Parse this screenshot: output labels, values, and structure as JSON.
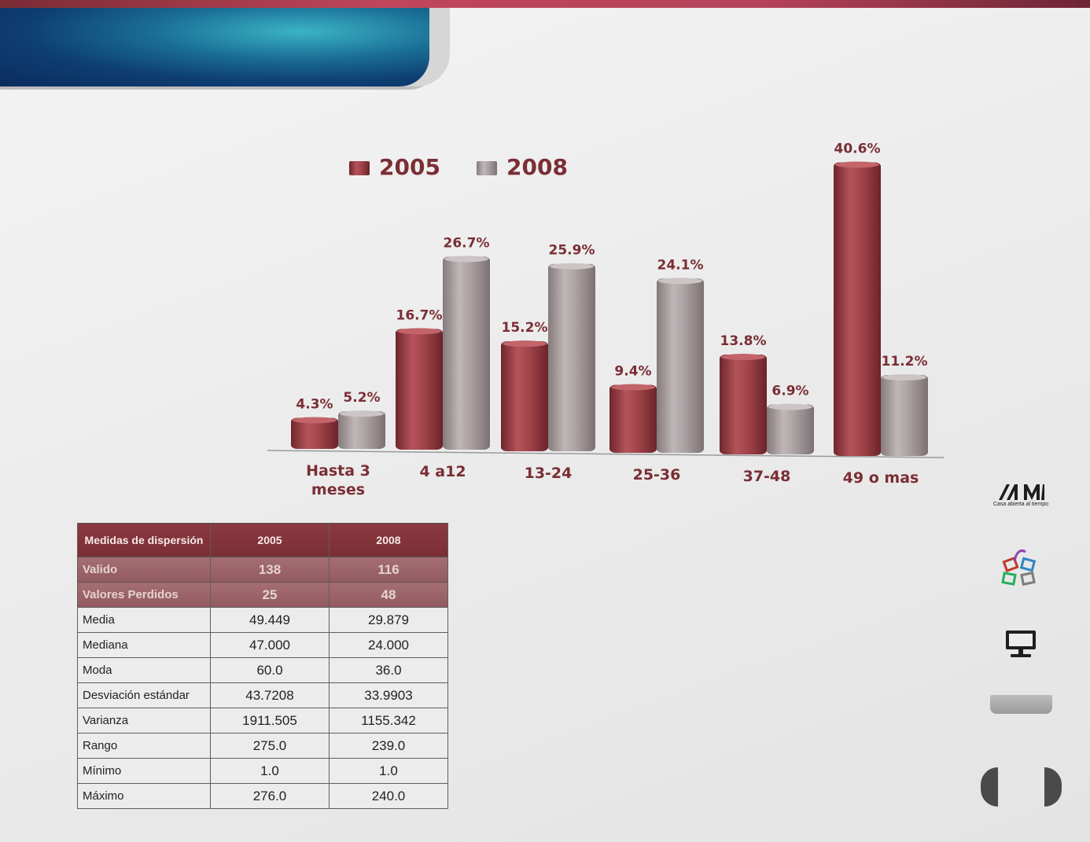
{
  "chart_data": {
    "type": "bar",
    "categories": [
      "Hasta 3 meses",
      "4 a12",
      "13-24",
      "25-36",
      "37-48",
      "49 o mas"
    ],
    "series": [
      {
        "name": "2005",
        "values": [
          4.3,
          16.7,
          15.2,
          9.4,
          13.8,
          40.6
        ],
        "labels": [
          "4.3%",
          "16.7%",
          "15.2%",
          "9.4%",
          "13.8%",
          "40.6%"
        ]
      },
      {
        "name": "2008",
        "values": [
          5.2,
          26.7,
          25.9,
          24.1,
          6.9,
          11.2
        ],
        "labels": [
          "5.2%",
          "26.7%",
          "25.9%",
          "24.1%",
          "6.9%",
          "11.2%"
        ]
      }
    ],
    "value_unit": "%",
    "legend_position": "top",
    "grid": false
  },
  "colors": {
    "series_2005": "#9a3a40",
    "series_2008": "#a3999b",
    "label_text": "#7a2e34",
    "table_header": "#7a2e34"
  },
  "stats_table": {
    "headers": [
      "Medidas de dispersión",
      "2005",
      "2008"
    ],
    "rows": [
      {
        "label": "Valido",
        "v2005": "138",
        "v2008": "116"
      },
      {
        "label": "Valores Perdidos",
        "v2005": "25",
        "v2008": "48"
      },
      {
        "label": "Media",
        "v2005": "49.449",
        "v2008": "29.879"
      },
      {
        "label": "Mediana",
        "v2005": "47.000",
        "v2008": "24.000"
      },
      {
        "label": "Moda",
        "v2005": "60.0",
        "v2008": "36.0"
      },
      {
        "label": "Desviación estándar",
        "v2005": "43.7208",
        "v2008": "33.9903"
      },
      {
        "label": "Varianza",
        "v2005": "1911.505",
        "v2008": "1155.342"
      },
      {
        "label": "Rango",
        "v2005": "275.0",
        "v2008": "239.0"
      },
      {
        "label": "Mínimo",
        "v2005": "1.0",
        "v2008": "1.0"
      },
      {
        "label": "Máximo",
        "v2005": "276.0",
        "v2008": "240.0"
      }
    ]
  },
  "sidebar": {
    "logo_caption": "Casa abierta al tiempo",
    "icons": [
      "uam-logo-icon",
      "building-blocks-icon",
      "monitor-icon"
    ]
  },
  "nav": {
    "icons": [
      "prev-icon",
      "next-icon"
    ]
  }
}
